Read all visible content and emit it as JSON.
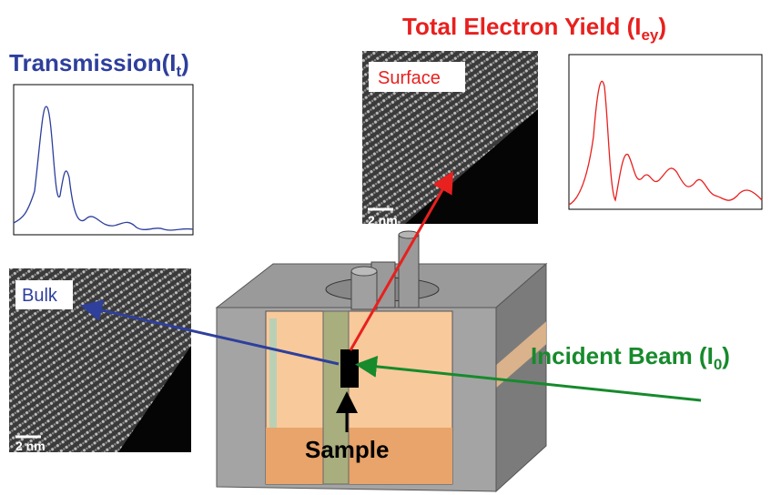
{
  "transmission": {
    "text": "Transmission(I",
    "subscript": "t",
    "close": ")"
  },
  "total_electron_yield": {
    "text": "Total Electron Yield (I",
    "subscript": "ey",
    "close": ")"
  },
  "incident_beam": {
    "text": "Incident Beam (I",
    "subscript": "0",
    "close": ")"
  },
  "surface_image": {
    "label": "Surface",
    "scale_bar": "2 nm"
  },
  "bulk_image": {
    "label": "Bulk",
    "scale_bar": "2 nm"
  },
  "sample": "Sample"
}
